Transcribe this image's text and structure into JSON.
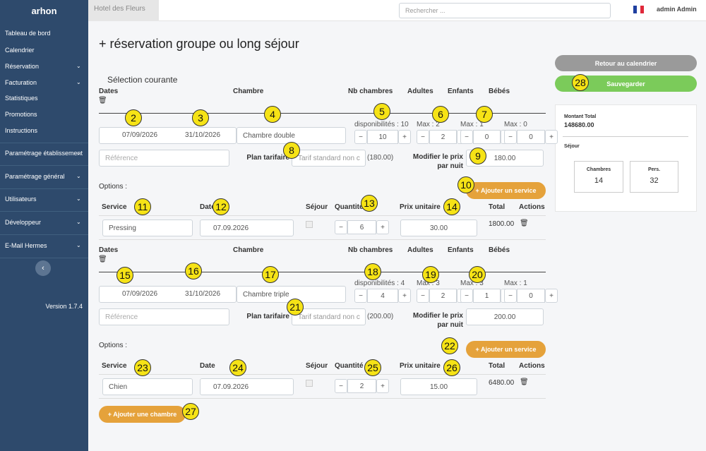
{
  "sidebar": {
    "logo": "arhon",
    "menu": [
      "Tableau de bord",
      "Calendrier",
      "Réservation",
      "Facturation",
      "Statistiques",
      "Promotions",
      "Instructions",
      "Paramétrage établissement",
      "Paramétrage général",
      "Utilisateurs",
      "Développeur",
      "E-Mail Hermes"
    ],
    "version": "Version 1.7.4"
  },
  "topbar": {
    "hotel": "Hotel des Fleurs",
    "search_placeholder": "Rechercher ...",
    "user": "admin Admin"
  },
  "title": "+ réservation groupe ou long séjour",
  "section": "Sélection courante",
  "labels": {
    "dates": "Dates",
    "room": "Chambre",
    "nb_rooms": "Nb chambres",
    "adults": "Adultes",
    "children": "Enfants",
    "babies": "Bébés",
    "reference": "Référence",
    "rate_plan": "Plan tarifaire",
    "modify_price": "Modifier le prix par nuit",
    "options": "Options :",
    "add_service": "+ Ajouter un service",
    "service": "Service",
    "date": "Date",
    "stay": "Séjour",
    "quantity": "Quantité",
    "unit_price": "Prix unitaire",
    "total": "Total",
    "actions": "Actions"
  },
  "reservations": [
    {
      "start": "07/09/2026",
      "end": "31/10/2026",
      "room": "Chambre double",
      "availability": "disponibilités : 10",
      "nb_rooms": 10,
      "max_adults": "Max : 2",
      "adults": 2,
      "max_children": "Max : 1",
      "children": 0,
      "max_babies": "Max : 0",
      "babies": 0,
      "rate_plan": "Tarif standard non c",
      "rate_price": "(180.00)",
      "price": "180.00",
      "service": {
        "name": "Pressing",
        "date": "07.09.2026",
        "quantity": 6,
        "unit_price": "30.00",
        "total": "1800.00"
      }
    },
    {
      "start": "07/09/2026",
      "end": "31/10/2026",
      "room": "Chambre triple",
      "availability": "disponibilités : 4",
      "nb_rooms": 4,
      "max_adults": "Max : 3",
      "adults": 2,
      "max_children": "Max : 3",
      "children": 1,
      "max_babies": "Max : 1",
      "babies": 0,
      "rate_plan": "Tarif standard non c",
      "rate_price": "(200.00)",
      "price": "200.00",
      "service": {
        "name": "Chien",
        "date": "07.09.2026",
        "quantity": 2,
        "unit_price": "15.00",
        "total": "6480.00"
      }
    }
  ],
  "add_room": "+ Ajouter une chambre",
  "buttons": {
    "back": "Retour au calendrier",
    "save": "Sauvegarder"
  },
  "summary": {
    "total_label": "Montant Total",
    "total": "148680.00",
    "stay_label": "Séjour",
    "rooms_label": "Chambres",
    "rooms": 14,
    "persons_label": "Pers.",
    "persons": 32
  },
  "callouts": [
    2,
    3,
    4,
    5,
    6,
    7,
    8,
    9,
    10,
    11,
    12,
    13,
    14,
    15,
    16,
    17,
    18,
    19,
    20,
    21,
    22,
    23,
    24,
    25,
    26,
    27,
    28
  ]
}
